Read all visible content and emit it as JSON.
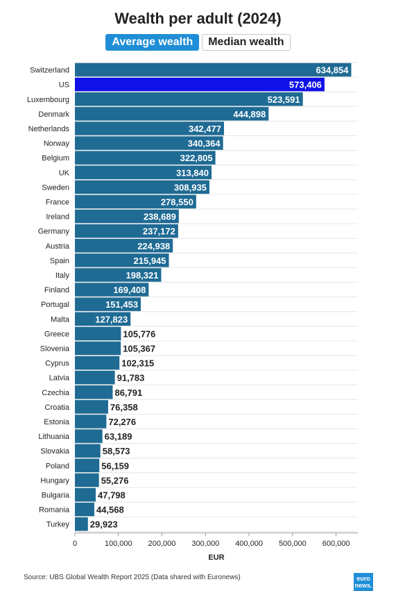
{
  "header": {
    "title": "Wealth per adult (2024)",
    "tabs": [
      {
        "label": "Average wealth",
        "active": true
      },
      {
        "label": "Median wealth",
        "active": false
      }
    ]
  },
  "footer": {
    "source": "Source: UBS Global Wealth Report 2025 (Data shared with Euronews)",
    "logo_line1": "euro",
    "logo_line2": "news."
  },
  "colors": {
    "bar": "#1f6b94",
    "highlight_bar": "#1010e8",
    "tab_active": "#1f8ed6"
  },
  "chart_data": {
    "type": "bar",
    "orientation": "horizontal",
    "categories": [
      "Switzerland",
      "US",
      "Luxembourg",
      "Denmark",
      "Netherlands",
      "Norway",
      "Belgium",
      "UK",
      "Sweden",
      "France",
      "Ireland",
      "Germany",
      "Austria",
      "Spain",
      "Italy",
      "Finland",
      "Portugal",
      "Malta",
      "Greece",
      "Slovenia",
      "Cyprus",
      "Latvia",
      "Czechia",
      "Croatia",
      "Estonia",
      "Lithuania",
      "Slovakia",
      "Poland",
      "Hungary",
      "Bulgaria",
      "Romania",
      "Turkey"
    ],
    "values": [
      634854,
      573406,
      523591,
      444898,
      342477,
      340364,
      322805,
      313840,
      308935,
      278550,
      238689,
      237172,
      224938,
      215945,
      198321,
      169408,
      151453,
      127823,
      105776,
      105367,
      102315,
      91783,
      86791,
      76358,
      72276,
      63189,
      58573,
      56159,
      55276,
      47798,
      44568,
      29923
    ],
    "value_labels": [
      "634,854",
      "573,406",
      "523,591",
      "444,898",
      "342,477",
      "340,364",
      "322,805",
      "313,840",
      "308,935",
      "278,550",
      "238,689",
      "237,172",
      "224,938",
      "215,945",
      "198,321",
      "169,408",
      "151,453",
      "127,823",
      "105,776",
      "105,367",
      "102,315",
      "91,783",
      "86,791",
      "76,358",
      "72,276",
      "63,189",
      "58,573",
      "56,159",
      "55,276",
      "47,798",
      "44,568",
      "29,923"
    ],
    "highlight": "US",
    "xlabel": "EUR",
    "xlim": [
      0,
      650000
    ],
    "xticks": [
      0,
      100000,
      200000,
      300000,
      400000,
      500000,
      600000
    ],
    "xtick_labels": [
      "0",
      "100,000",
      "200,000",
      "300,000",
      "400,000",
      "500,000",
      "600,000"
    ],
    "grid": true
  }
}
